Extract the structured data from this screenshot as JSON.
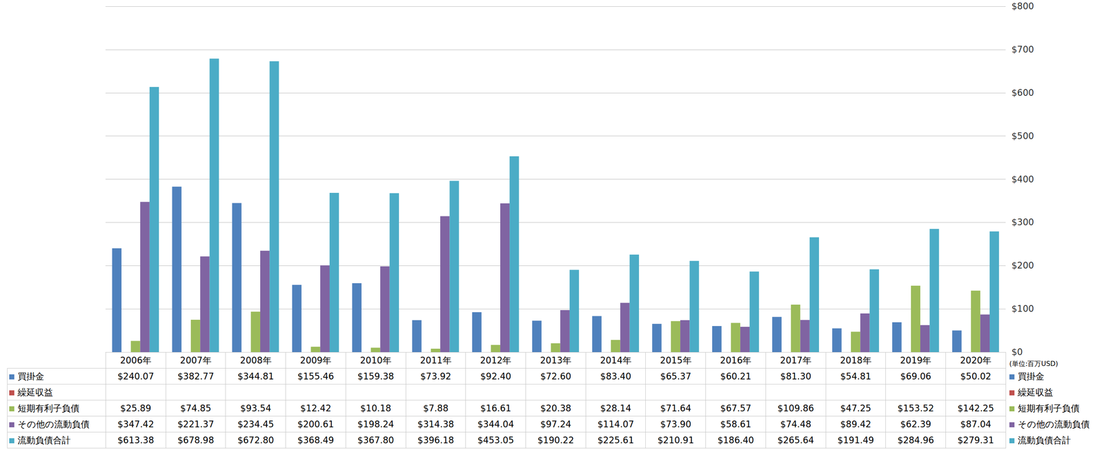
{
  "chart_data": {
    "type": "bar",
    "categories": [
      "2006年",
      "2007年",
      "2008年",
      "2009年",
      "2010年",
      "2011年",
      "2012年",
      "2013年",
      "2014年",
      "2015年",
      "2016年",
      "2017年",
      "2018年",
      "2019年",
      "2020年"
    ],
    "series": [
      {
        "name": "買掛金",
        "color": "#4f81bd",
        "values": [
          240.07,
          382.77,
          344.81,
          155.46,
          159.38,
          73.92,
          92.4,
          72.6,
          83.4,
          65.37,
          60.21,
          81.3,
          54.81,
          69.06,
          50.02
        ],
        "value_labels": [
          "$240.07",
          "$382.77",
          "$344.81",
          "$155.46",
          "$159.38",
          "$73.92",
          "$92.40",
          "$72.60",
          "$83.40",
          "$65.37",
          "$60.21",
          "$81.30",
          "$54.81",
          "$69.06",
          "$50.02"
        ]
      },
      {
        "name": "繰延収益",
        "color": "#c0504d",
        "values": [
          null,
          null,
          null,
          null,
          null,
          null,
          null,
          null,
          null,
          null,
          null,
          null,
          null,
          null,
          null
        ],
        "value_labels": [
          null,
          null,
          null,
          null,
          null,
          null,
          null,
          null,
          null,
          null,
          null,
          null,
          null,
          null,
          null
        ]
      },
      {
        "name": "短期有利子負債",
        "color": "#9bbb59",
        "values": [
          25.89,
          74.85,
          93.54,
          12.42,
          10.18,
          7.88,
          16.61,
          20.38,
          28.14,
          71.64,
          67.57,
          109.86,
          47.25,
          153.52,
          142.25
        ],
        "value_labels": [
          "$25.89",
          "$74.85",
          "$93.54",
          "$12.42",
          "$10.18",
          "$7.88",
          "$16.61",
          "$20.38",
          "$28.14",
          "$71.64",
          "$67.57",
          "$109.86",
          "$47.25",
          "$153.52",
          "$142.25"
        ]
      },
      {
        "name": "その他の流動負債",
        "color": "#8064a2",
        "values": [
          347.42,
          221.37,
          234.45,
          200.61,
          198.24,
          314.38,
          344.04,
          97.24,
          114.07,
          73.9,
          58.61,
          74.48,
          89.42,
          62.39,
          87.04
        ],
        "value_labels": [
          "$347.42",
          "$221.37",
          "$234.45",
          "$200.61",
          "$198.24",
          "$314.38",
          "$344.04",
          "$97.24",
          "$114.07",
          "$73.90",
          "$58.61",
          "$74.48",
          "$89.42",
          "$62.39",
          "$87.04"
        ]
      },
      {
        "name": "流動負債合計",
        "color": "#4bacc6",
        "values": [
          613.38,
          678.98,
          672.8,
          368.49,
          367.8,
          396.18,
          453.05,
          190.22,
          225.61,
          210.91,
          186.4,
          265.64,
          191.49,
          284.96,
          279.31
        ],
        "value_labels": [
          "$613.38",
          "$678.98",
          "$672.80",
          "$368.49",
          "$367.80",
          "$396.18",
          "$453.05",
          "$190.22",
          "$225.61",
          "$210.91",
          "$186.40",
          "$265.64",
          "$191.49",
          "$284.96",
          "$279.31"
        ]
      }
    ],
    "ylim": [
      0,
      800
    ],
    "yticks": [
      {
        "value": 0,
        "label": "$0"
      },
      {
        "value": 100,
        "label": "$100"
      },
      {
        "value": 200,
        "label": "$200"
      },
      {
        "value": 300,
        "label": "$300"
      },
      {
        "value": 400,
        "label": "$400"
      },
      {
        "value": 500,
        "label": "$500"
      },
      {
        "value": 600,
        "label": "$600"
      },
      {
        "value": 700,
        "label": "$700"
      },
      {
        "value": 800,
        "label": "$800"
      }
    ],
    "annotations": [
      "(単位:百万USD)"
    ],
    "grid": true
  }
}
